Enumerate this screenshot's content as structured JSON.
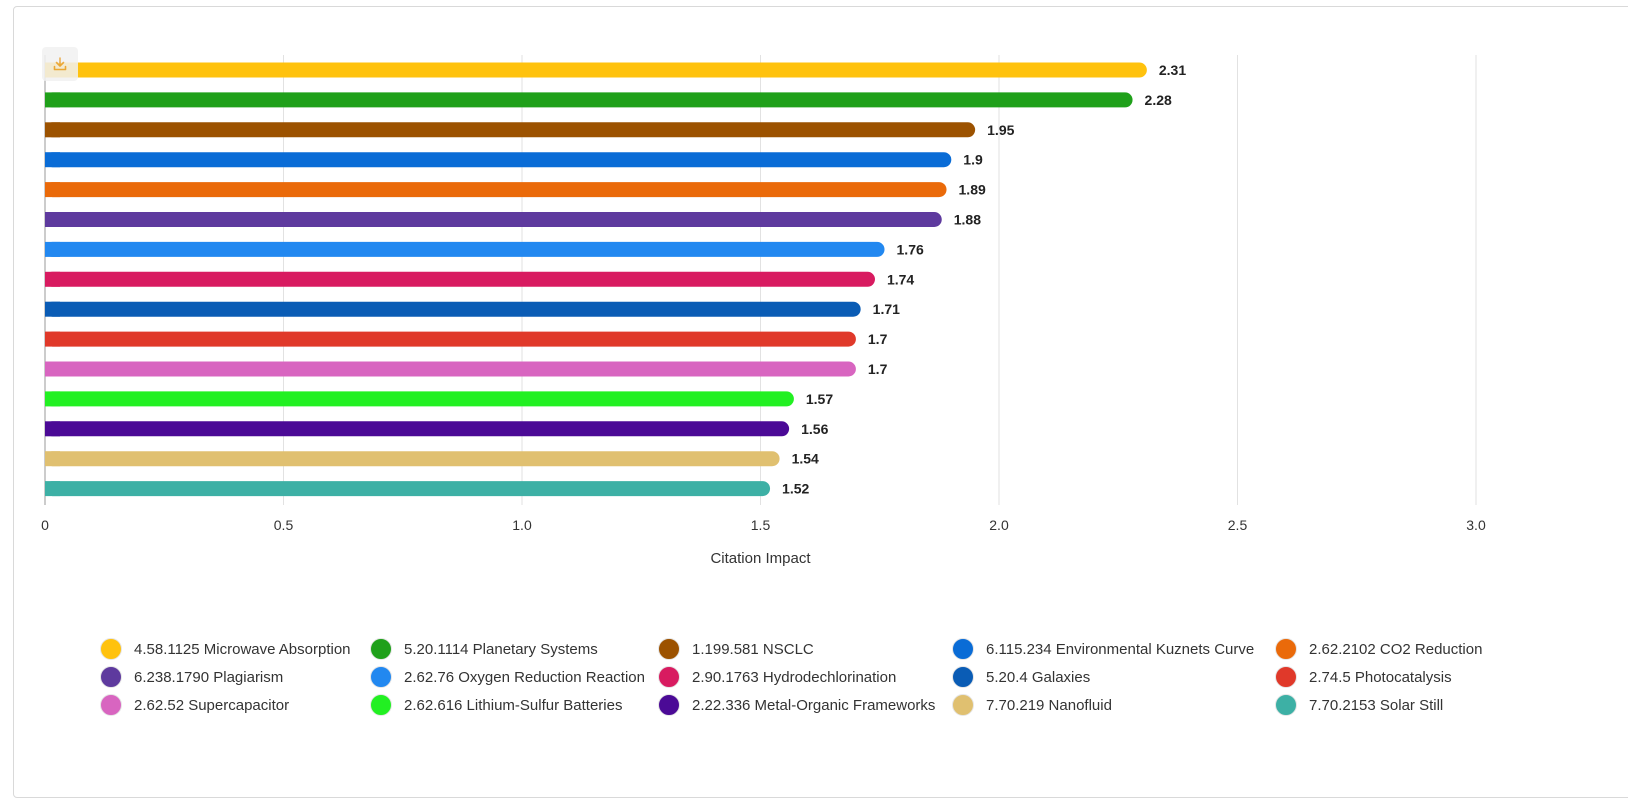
{
  "toolbar": {
    "download_icon": "download-icon"
  },
  "chart_data": {
    "type": "bar",
    "orientation": "horizontal",
    "xlabel": "Citation Impact",
    "ylabel": "",
    "xlim": [
      0,
      3.0
    ],
    "xticks": [
      "0",
      "0.5",
      "1.0",
      "1.5",
      "2.0",
      "2.5",
      "3.0"
    ],
    "grid": true,
    "legend_position": "bottom",
    "series": [
      {
        "name": "4.58.1125 Microwave Absorption",
        "value": 2.31,
        "label": "2.31",
        "color": "#FFC20E"
      },
      {
        "name": "5.20.1114 Planetary Systems",
        "value": 2.28,
        "label": "2.28",
        "color": "#1FA01A"
      },
      {
        "name": "1.199.581 NSCLC",
        "value": 1.95,
        "label": "1.95",
        "color": "#9C5200"
      },
      {
        "name": "6.115.234 Environmental Kuznets Curve",
        "value": 1.9,
        "label": "1.9",
        "color": "#0A6CD6"
      },
      {
        "name": "2.62.2102 CO2 Reduction",
        "value": 1.89,
        "label": "1.89",
        "color": "#EA6A0A"
      },
      {
        "name": "6.238.1790 Plagiarism",
        "value": 1.88,
        "label": "1.88",
        "color": "#5E3A9E"
      },
      {
        "name": "2.62.76 Oxygen Reduction Reaction",
        "value": 1.76,
        "label": "1.76",
        "color": "#2288F0"
      },
      {
        "name": "2.90.1763 Hydrodechlorination",
        "value": 1.74,
        "label": "1.74",
        "color": "#D81B60"
      },
      {
        "name": "5.20.4 Galaxies",
        "value": 1.71,
        "label": "1.71",
        "color": "#0A5CB5"
      },
      {
        "name": "2.74.5 Photocatalysis",
        "value": 1.7,
        "label": "1.7",
        "color": "#E0392A"
      },
      {
        "name": "2.62.52 Supercapacitor",
        "value": 1.7,
        "label": "1.7",
        "color": "#D865C0"
      },
      {
        "name": "2.62.616 Lithium-Sulfur Batteries",
        "value": 1.57,
        "label": "1.57",
        "color": "#22F022"
      },
      {
        "name": "2.22.336 Metal-Organic Frameworks",
        "value": 1.56,
        "label": "1.56",
        "color": "#4B0A96"
      },
      {
        "name": "7.70.219 Nanofluid",
        "value": 1.54,
        "label": "1.54",
        "color": "#E0C070"
      },
      {
        "name": "7.70.2153 Solar Still",
        "value": 1.52,
        "label": "1.52",
        "color": "#3DB0A5"
      }
    ]
  }
}
